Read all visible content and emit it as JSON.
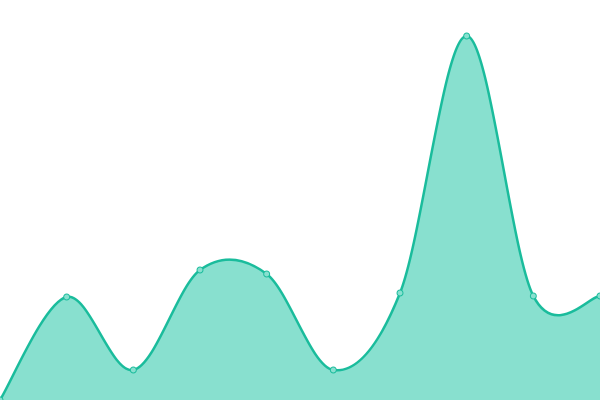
{
  "chart_data": {
    "type": "area",
    "categories": [
      null,
      null,
      null,
      null,
      null,
      null,
      null,
      null,
      null,
      null
    ],
    "values": [
      0,
      103,
      30,
      130,
      126,
      30,
      107,
      364,
      104,
      104
    ],
    "ylim": [
      0,
      400
    ],
    "color": "#1abc9c",
    "fill_color": "#88e0cf"
  }
}
